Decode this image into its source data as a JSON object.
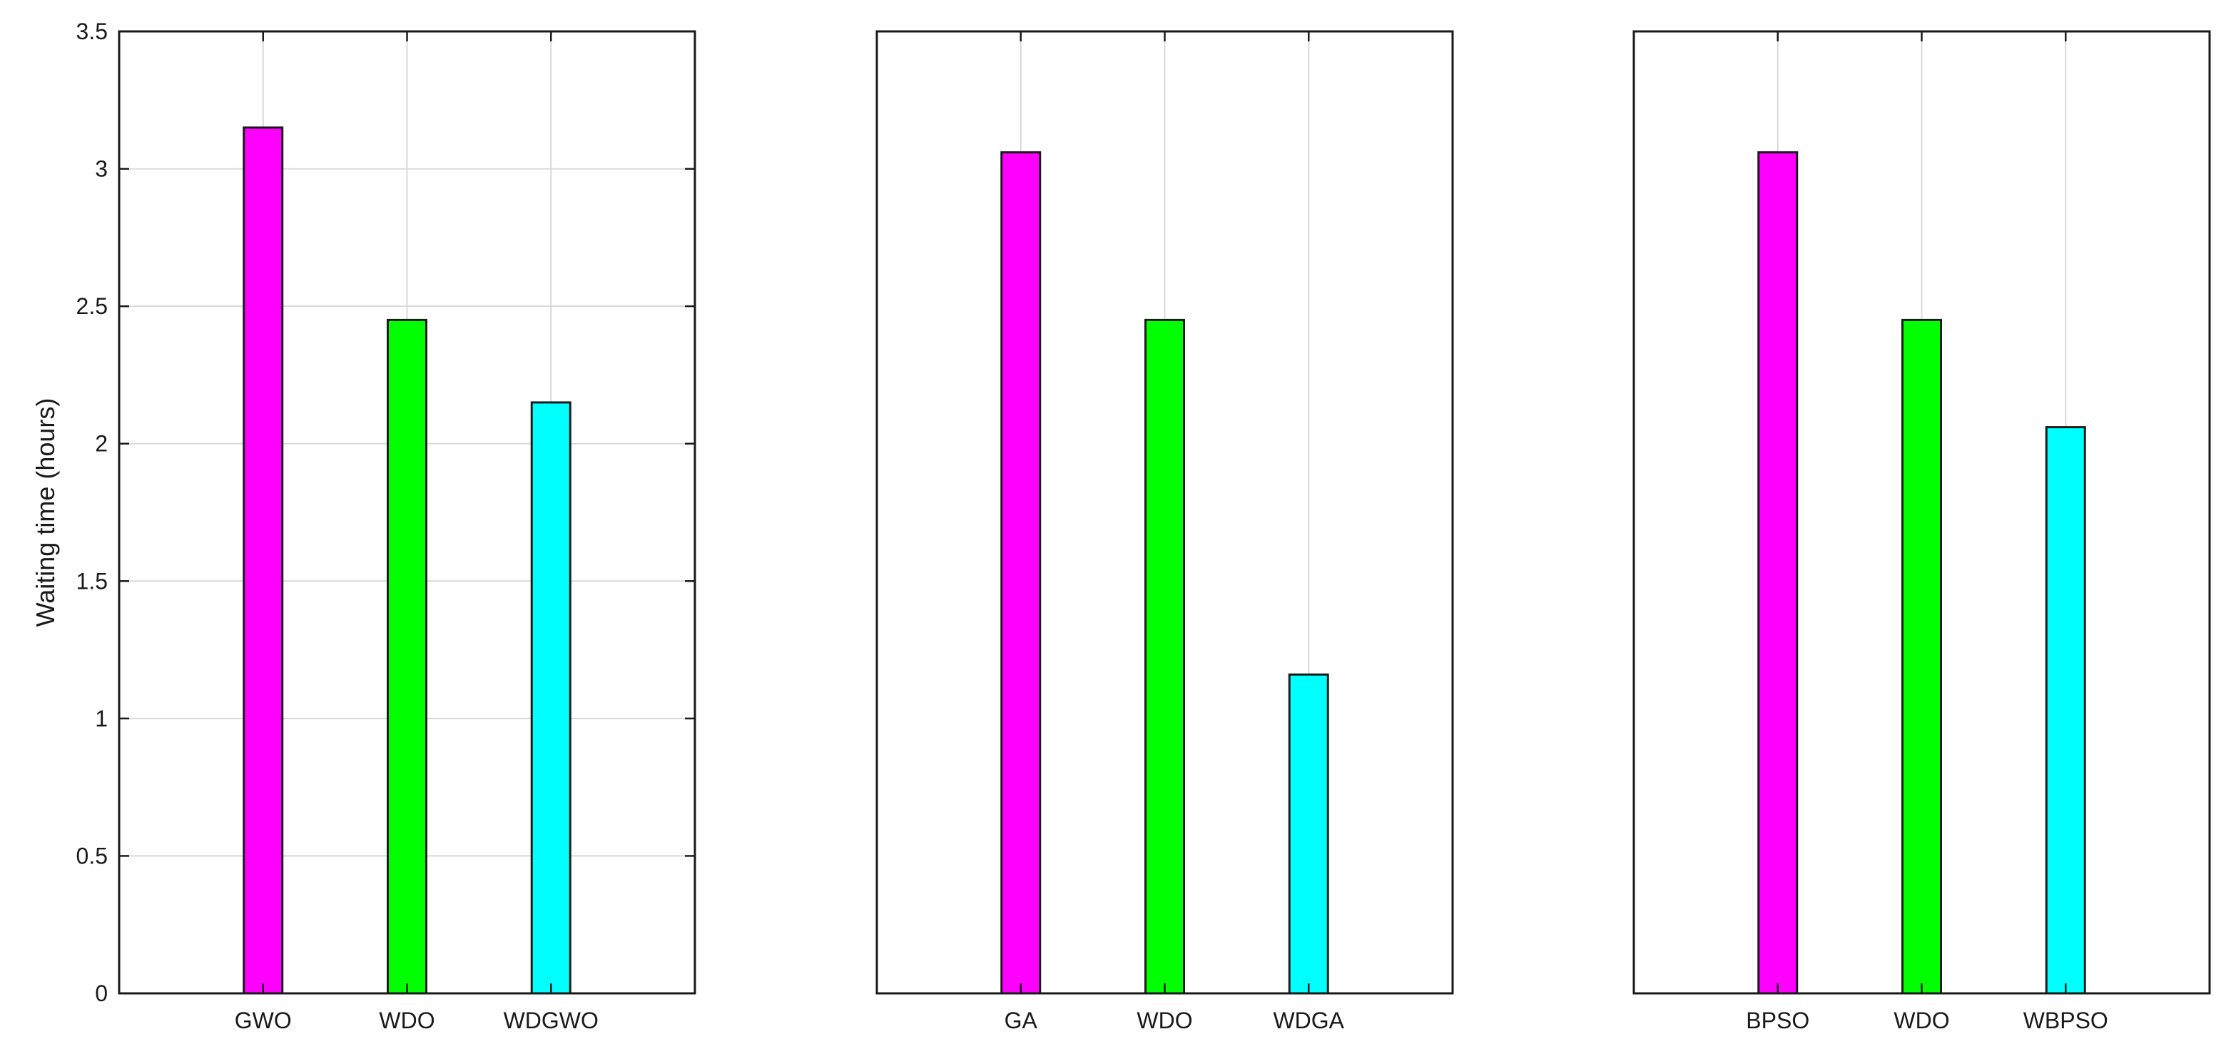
{
  "chart_data": [
    {
      "type": "bar",
      "title": "",
      "xlabel": "",
      "ylabel": "Waiting time (hours)",
      "ylim": [
        0,
        3.5
      ],
      "yticks": [
        "0",
        "0.5",
        "1",
        "1.5",
        "2",
        "2.5",
        "3",
        "3.5"
      ],
      "grid": "on",
      "show_y_tick_labels": true,
      "categories": [
        "GWO",
        "WDO",
        "WDGWO"
      ],
      "values": [
        3.15,
        2.45,
        2.15
      ],
      "colors": [
        "#ff00ff",
        "#00ff00",
        "#00ffff"
      ]
    },
    {
      "type": "bar",
      "title": "",
      "xlabel": "",
      "ylabel": "",
      "ylim": [
        0,
        3.5
      ],
      "grid": "vertical only",
      "show_y_tick_labels": false,
      "categories": [
        "GA",
        "WDO",
        "WDGA"
      ],
      "values": [
        3.06,
        2.45,
        1.16
      ],
      "colors": [
        "#ff00ff",
        "#00ff00",
        "#00ffff"
      ]
    },
    {
      "type": "bar",
      "title": "",
      "xlabel": "",
      "ylabel": "",
      "ylim": [
        0,
        3.5
      ],
      "grid": "vertical only",
      "show_y_tick_labels": false,
      "categories": [
        "BPSO",
        "WDO",
        "WBPSO"
      ],
      "values": [
        3.06,
        2.45,
        2.06
      ],
      "colors": [
        "#ff00ff",
        "#00ff00",
        "#00ffff"
      ]
    }
  ]
}
